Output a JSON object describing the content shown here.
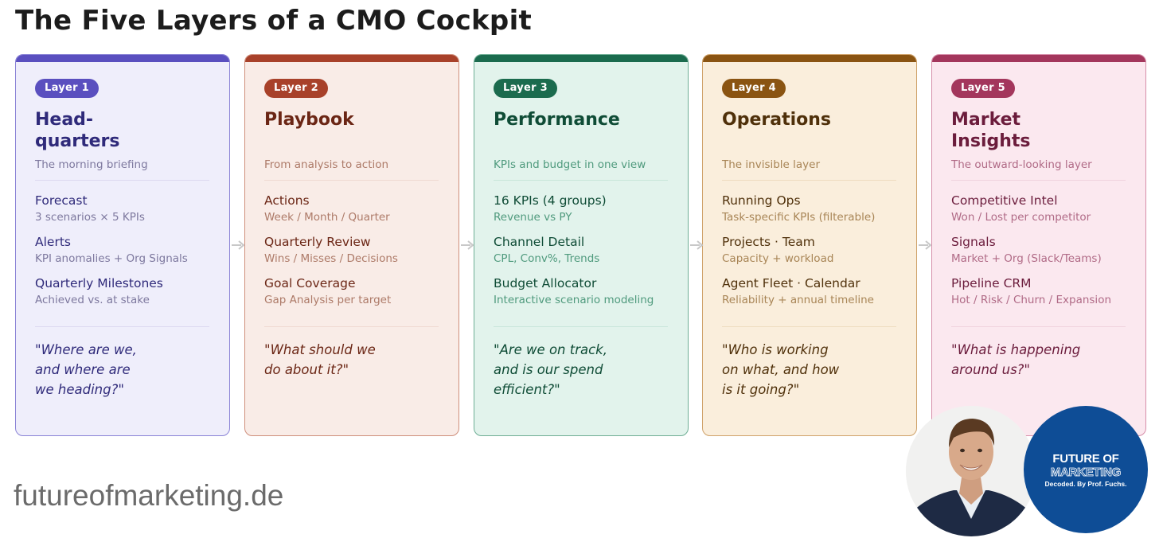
{
  "title": "The Five Layers of a CMO Cockpit",
  "layers": [
    {
      "badge": "Layer 1",
      "heading": "Head-\nquarters",
      "subtitle": "The morning briefing",
      "items": [
        {
          "title": "Forecast",
          "sub": "3 scenarios × 5 KPIs"
        },
        {
          "title": "Alerts",
          "sub": "KPI anomalies + Org Signals"
        },
        {
          "title": "Quarterly Milestones",
          "sub": "Achieved vs. at stake"
        }
      ],
      "quote": "\"Where are we,\nand where are\nwe heading?\"",
      "colors": {
        "accent": "#5a4fbf",
        "bg": "#efeefb",
        "border": "#8a83d6",
        "heading": "#2f2a7a",
        "sub": "#7d789e",
        "divider": "#dcd9f0"
      }
    },
    {
      "badge": "Layer 2",
      "heading": "Playbook",
      "subtitle": "From analysis to action",
      "items": [
        {
          "title": "Actions",
          "sub": "Week / Month / Quarter"
        },
        {
          "title": "Quarterly Review",
          "sub": "Wins / Misses / Decisions"
        },
        {
          "title": "Goal Coverage",
          "sub": "Gap Analysis per target"
        }
      ],
      "quote": "\"What should we\ndo about it?\"",
      "colors": {
        "accent": "#a8412a",
        "bg": "#f9ece7",
        "border": "#cf8f7c",
        "heading": "#6b2615",
        "sub": "#ad7a68",
        "divider": "#efd9d1"
      }
    },
    {
      "badge": "Layer 3",
      "heading": "Performance",
      "subtitle": "KPIs and budget in one view",
      "items": [
        {
          "title": "16 KPIs (4 groups)",
          "sub": "Revenue vs PY"
        },
        {
          "title": "Channel Detail",
          "sub": "CPL, Conv%, Trends"
        },
        {
          "title": "Budget Allocator",
          "sub": "Interactive scenario modeling"
        }
      ],
      "quote": "\"Are we on track,\nand is our spend\nefficient?\"",
      "colors": {
        "accent": "#1b6b4e",
        "bg": "#e2f3ec",
        "border": "#6fae95",
        "heading": "#0f4c36",
        "sub": "#4f9a7d",
        "divider": "#c9e6da"
      }
    },
    {
      "badge": "Layer 4",
      "heading": "Operations",
      "subtitle": "The invisible layer",
      "items": [
        {
          "title": "Running Ops",
          "sub": "Task-specific KPIs (filterable)"
        },
        {
          "title": "Projects · Team",
          "sub": "Capacity + workload"
        },
        {
          "title": "Agent Fleet · Calendar",
          "sub": "Reliability + annual timeline"
        }
      ],
      "quote": "\"Who is working\non what, and how\nis it going?\"",
      "colors": {
        "accent": "#8a5412",
        "bg": "#faeedc",
        "border": "#cfa26a",
        "heading": "#4f300a",
        "sub": "#a88556",
        "divider": "#eedcc0"
      }
    },
    {
      "badge": "Layer 5",
      "heading": "Market\nInsights",
      "subtitle": "The outward-looking layer",
      "items": [
        {
          "title": "Competitive Intel",
          "sub": "Won / Lost per competitor"
        },
        {
          "title": "Signals",
          "sub": "Market + Org (Slack/Teams)"
        },
        {
          "title": "Pipeline CRM",
          "sub": "Hot / Risk / Churn / Expansion"
        }
      ],
      "quote": "\"What is happening\naround us?\"",
      "colors": {
        "accent": "#a3365c",
        "bg": "#fbe8ef",
        "border": "#d68ea9",
        "heading": "#6b1c3c",
        "sub": "#b06a86",
        "divider": "#f0d2de"
      }
    }
  ],
  "footer": {
    "url": "futureofmarketing.de",
    "logo_line1": "FUTURE OF",
    "logo_line2": "MARKETING",
    "logo_line3": "Decoded. By Prof. Fuchs."
  }
}
